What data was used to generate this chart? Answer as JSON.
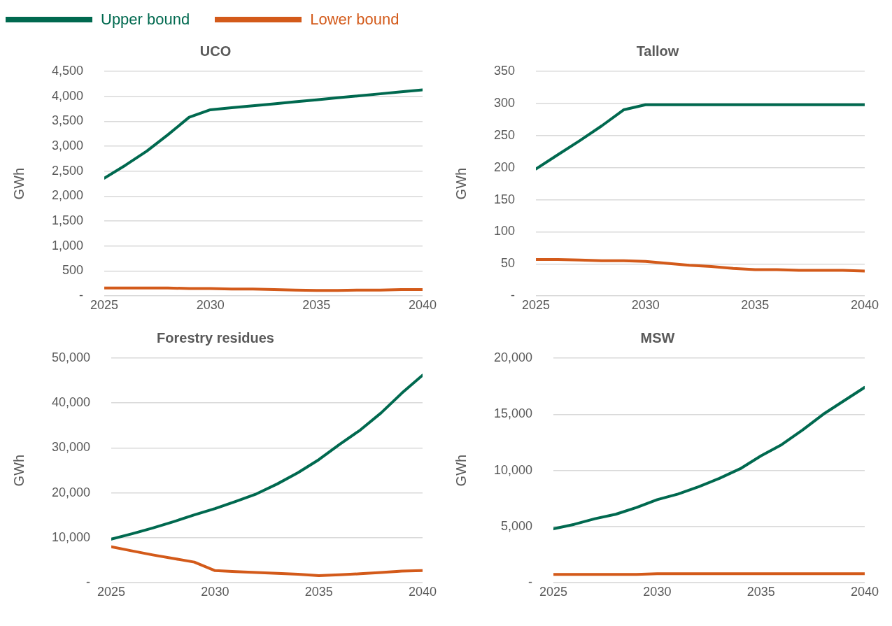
{
  "chart_data": [
    {
      "type": "line",
      "title": "UCO",
      "ylabel": "GWh",
      "legend": "top left",
      "grid": "y",
      "line_style": "solid",
      "marker": "none",
      "xlim": [
        2025,
        2040
      ],
      "xticks": [
        2025,
        2030,
        2035,
        2040
      ],
      "ylim": [
        0,
        4500
      ],
      "yticks": [
        {
          "value": 0,
          "label": "-"
        },
        {
          "value": 500,
          "label": "500"
        },
        {
          "value": 1000,
          "label": "1,000"
        },
        {
          "value": 1500,
          "label": "1,500"
        },
        {
          "value": 2000,
          "label": "2,000"
        },
        {
          "value": 2500,
          "label": "2,500"
        },
        {
          "value": 3000,
          "label": "3,000"
        },
        {
          "value": 3500,
          "label": "3,500"
        },
        {
          "value": 4000,
          "label": "4,000"
        },
        {
          "value": 4500,
          "label": "4,500"
        }
      ],
      "x": [
        2025,
        2026,
        2027,
        2028,
        2029,
        2030,
        2031,
        2032,
        2033,
        2034,
        2035,
        2036,
        2037,
        2038,
        2039,
        2040
      ],
      "series": [
        {
          "name": "Upper bound",
          "color": "#00694f",
          "values": [
            2360,
            2620,
            2900,
            3230,
            3580,
            3730,
            3770,
            3810,
            3850,
            3890,
            3930,
            3970,
            4010,
            4050,
            4090,
            4130
          ]
        },
        {
          "name": "Lower bound",
          "color": "#d35a1a",
          "values": [
            160,
            160,
            160,
            160,
            150,
            150,
            140,
            140,
            130,
            120,
            110,
            110,
            120,
            120,
            130,
            130
          ]
        }
      ]
    },
    {
      "type": "line",
      "title": "Tallow",
      "ylabel": "GWh",
      "grid": "y",
      "line_style": "solid",
      "marker": "none",
      "xlim": [
        2025,
        2040
      ],
      "xticks": [
        2025,
        2030,
        2035,
        2040
      ],
      "ylim": [
        0,
        350
      ],
      "yticks": [
        {
          "value": 0,
          "label": "-"
        },
        50,
        100,
        150,
        200,
        250,
        300,
        350
      ],
      "x": [
        2025,
        2026,
        2027,
        2028,
        2029,
        2030,
        2031,
        2032,
        2033,
        2034,
        2035,
        2036,
        2037,
        2038,
        2039,
        2040
      ],
      "series": [
        {
          "color": "#00694f",
          "values": [
            198,
            220,
            242,
            265,
            290,
            298,
            298,
            298,
            298,
            298,
            298,
            298,
            298,
            298,
            298,
            298
          ]
        },
        {
          "color": "#d35a1a",
          "values": [
            57,
            57,
            56,
            55,
            55,
            54,
            51,
            48,
            46,
            43,
            41,
            41,
            40,
            40,
            40,
            39
          ]
        }
      ]
    },
    {
      "type": "line",
      "title": "Forestry residues",
      "ylabel": "GWh",
      "grid": "y",
      "line_style": "solid",
      "marker": "none",
      "xlim": [
        2025,
        2040
      ],
      "xticks": [
        2025,
        2030,
        2035,
        2040
      ],
      "ylim": [
        0,
        50000
      ],
      "yticks": [
        {
          "value": 0,
          "label": "-"
        },
        {
          "value": 10000,
          "label": "10,000"
        },
        {
          "value": 20000,
          "label": "20,000"
        },
        {
          "value": 30000,
          "label": "30,000"
        },
        {
          "value": 40000,
          "label": "40,000"
        },
        {
          "value": 50000,
          "label": "50,000"
        }
      ],
      "x": [
        2025,
        2026,
        2027,
        2028,
        2029,
        2030,
        2031,
        2032,
        2033,
        2034,
        2035,
        2036,
        2037,
        2038,
        2039,
        2040
      ],
      "series": [
        {
          "color": "#00694f",
          "values": [
            9700,
            10900,
            12200,
            13600,
            15100,
            16500,
            18100,
            19800,
            22000,
            24500,
            27400,
            30800,
            34000,
            37800,
            42200,
            46200
          ]
        },
        {
          "color": "#d35a1a",
          "values": [
            8000,
            7100,
            6200,
            5400,
            4600,
            2700,
            2500,
            2300,
            2100,
            1900,
            1600,
            1800,
            2000,
            2300,
            2600,
            2700
          ]
        }
      ]
    },
    {
      "type": "line",
      "title": "MSW",
      "ylabel": "GWh",
      "grid": "y",
      "line_style": "solid",
      "marker": "none",
      "xlim": [
        2025,
        2040
      ],
      "xticks": [
        2025,
        2030,
        2035,
        2040
      ],
      "ylim": [
        0,
        20000
      ],
      "yticks": [
        {
          "value": 0,
          "label": "-"
        },
        {
          "value": 5000,
          "label": "5,000"
        },
        {
          "value": 10000,
          "label": "10,000"
        },
        {
          "value": 15000,
          "label": "15,000"
        },
        {
          "value": 20000,
          "label": "20,000"
        }
      ],
      "x": [
        2025,
        2026,
        2027,
        2028,
        2029,
        2030,
        2031,
        2032,
        2033,
        2034,
        2035,
        2036,
        2037,
        2038,
        2039,
        2040
      ],
      "series": [
        {
          "color": "#00694f",
          "values": [
            4800,
            5200,
            5700,
            6100,
            6700,
            7400,
            7900,
            8550,
            9300,
            10150,
            11300,
            12300,
            13600,
            15000,
            16200,
            17400
          ]
        },
        {
          "color": "#d35a1a",
          "values": [
            750,
            750,
            750,
            750,
            750,
            800,
            800,
            800,
            800,
            800,
            800,
            800,
            800,
            800,
            800,
            800
          ]
        }
      ]
    }
  ]
}
